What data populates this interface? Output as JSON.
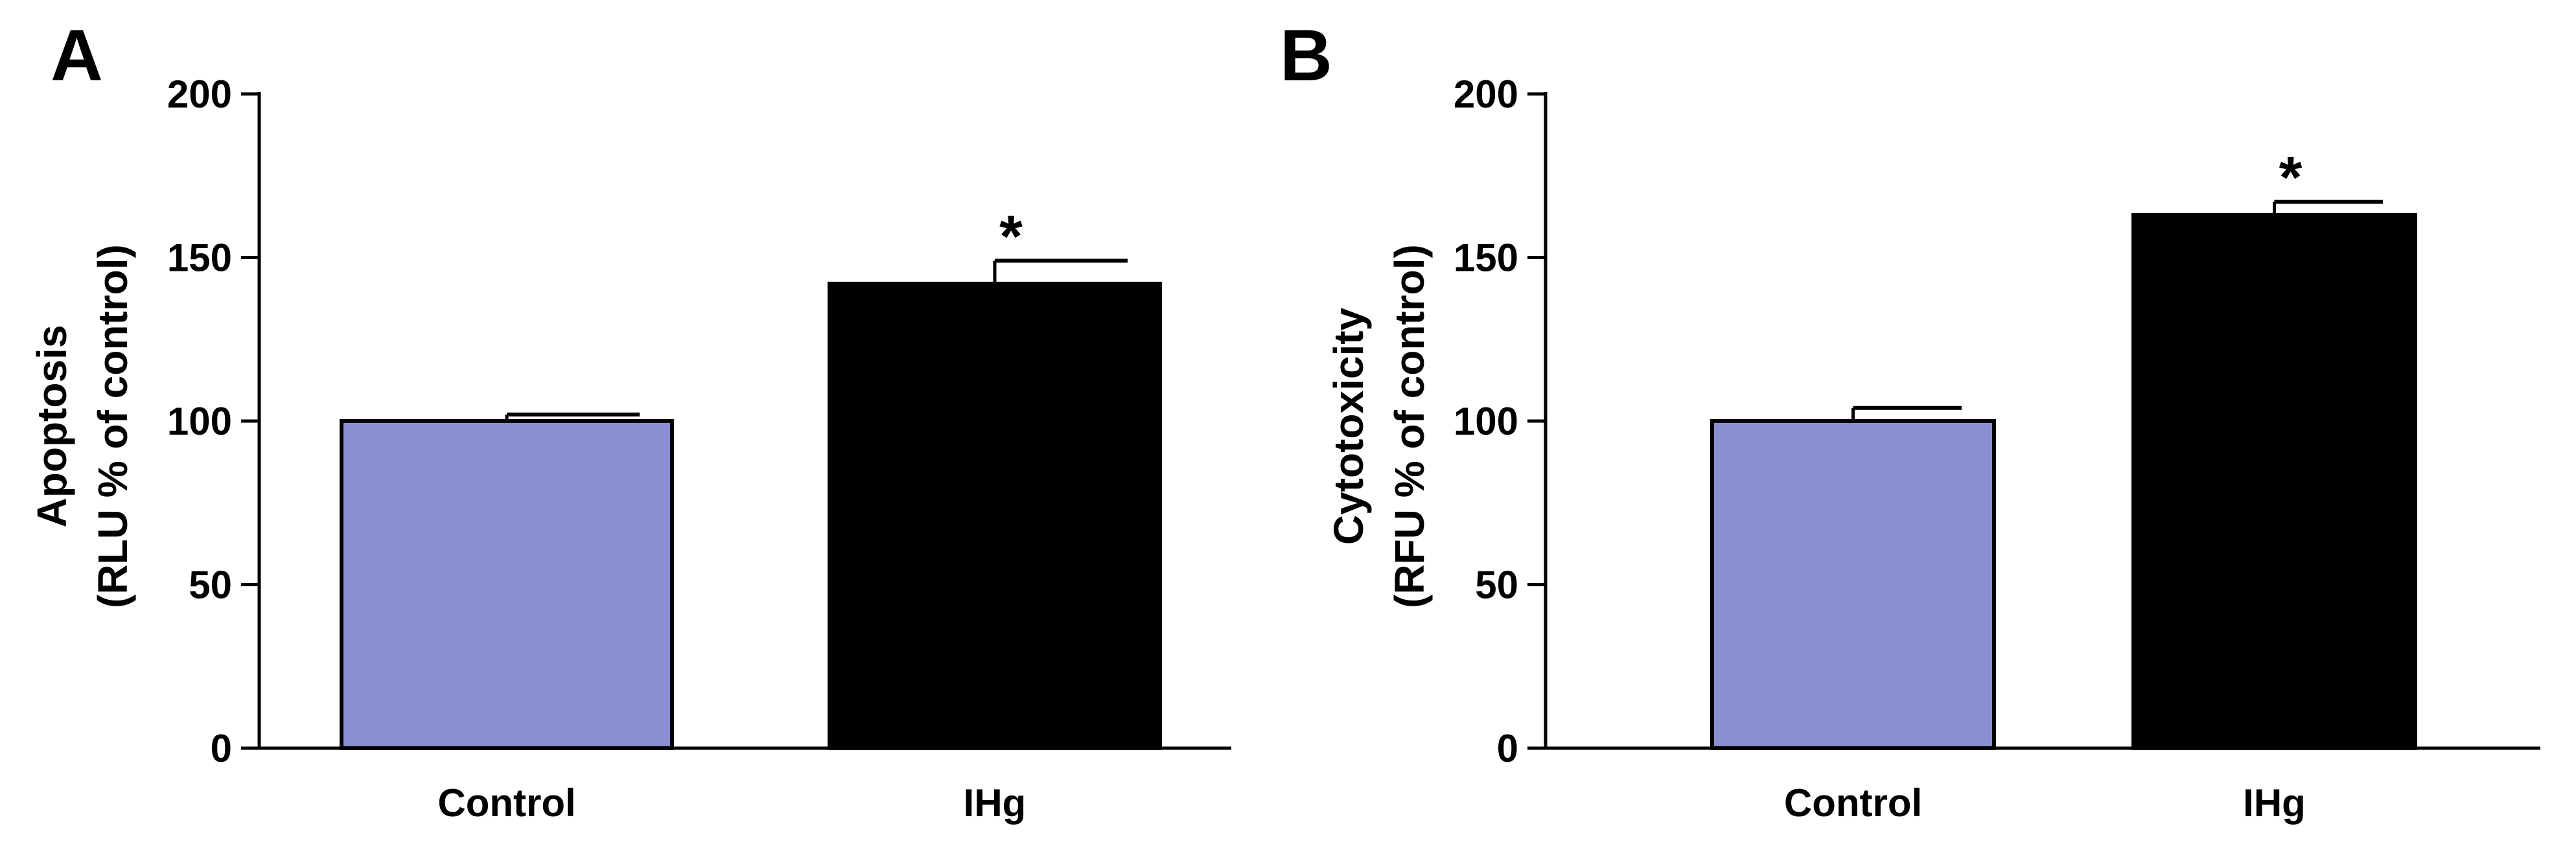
{
  "chart_data": [
    {
      "type": "bar",
      "panel_label": "A",
      "categories": [
        "Control",
        "IHg"
      ],
      "values": [
        100,
        142
      ],
      "errors": [
        2,
        7
      ],
      "significance": [
        "",
        "*"
      ],
      "colors": [
        "#8a8fcf",
        "#000000"
      ],
      "ylabel_line1": "Apoptosis",
      "ylabel_line2": "(RLU % of control)",
      "ylim": [
        0,
        200
      ],
      "yticks": [
        0,
        50,
        100,
        150,
        200
      ],
      "grid": false,
      "legend": false
    },
    {
      "type": "bar",
      "panel_label": "B",
      "categories": [
        "Control",
        "IHg"
      ],
      "values": [
        100,
        163
      ],
      "errors": [
        4,
        4
      ],
      "significance": [
        "",
        "*"
      ],
      "colors": [
        "#8a8fcf",
        "#000000"
      ],
      "ylabel_line1": "Cytotoxicity",
      "ylabel_line2": "(RFU % of control)",
      "ylim": [
        0,
        200
      ],
      "yticks": [
        0,
        50,
        100,
        150,
        200
      ],
      "grid": false,
      "legend": false
    }
  ]
}
